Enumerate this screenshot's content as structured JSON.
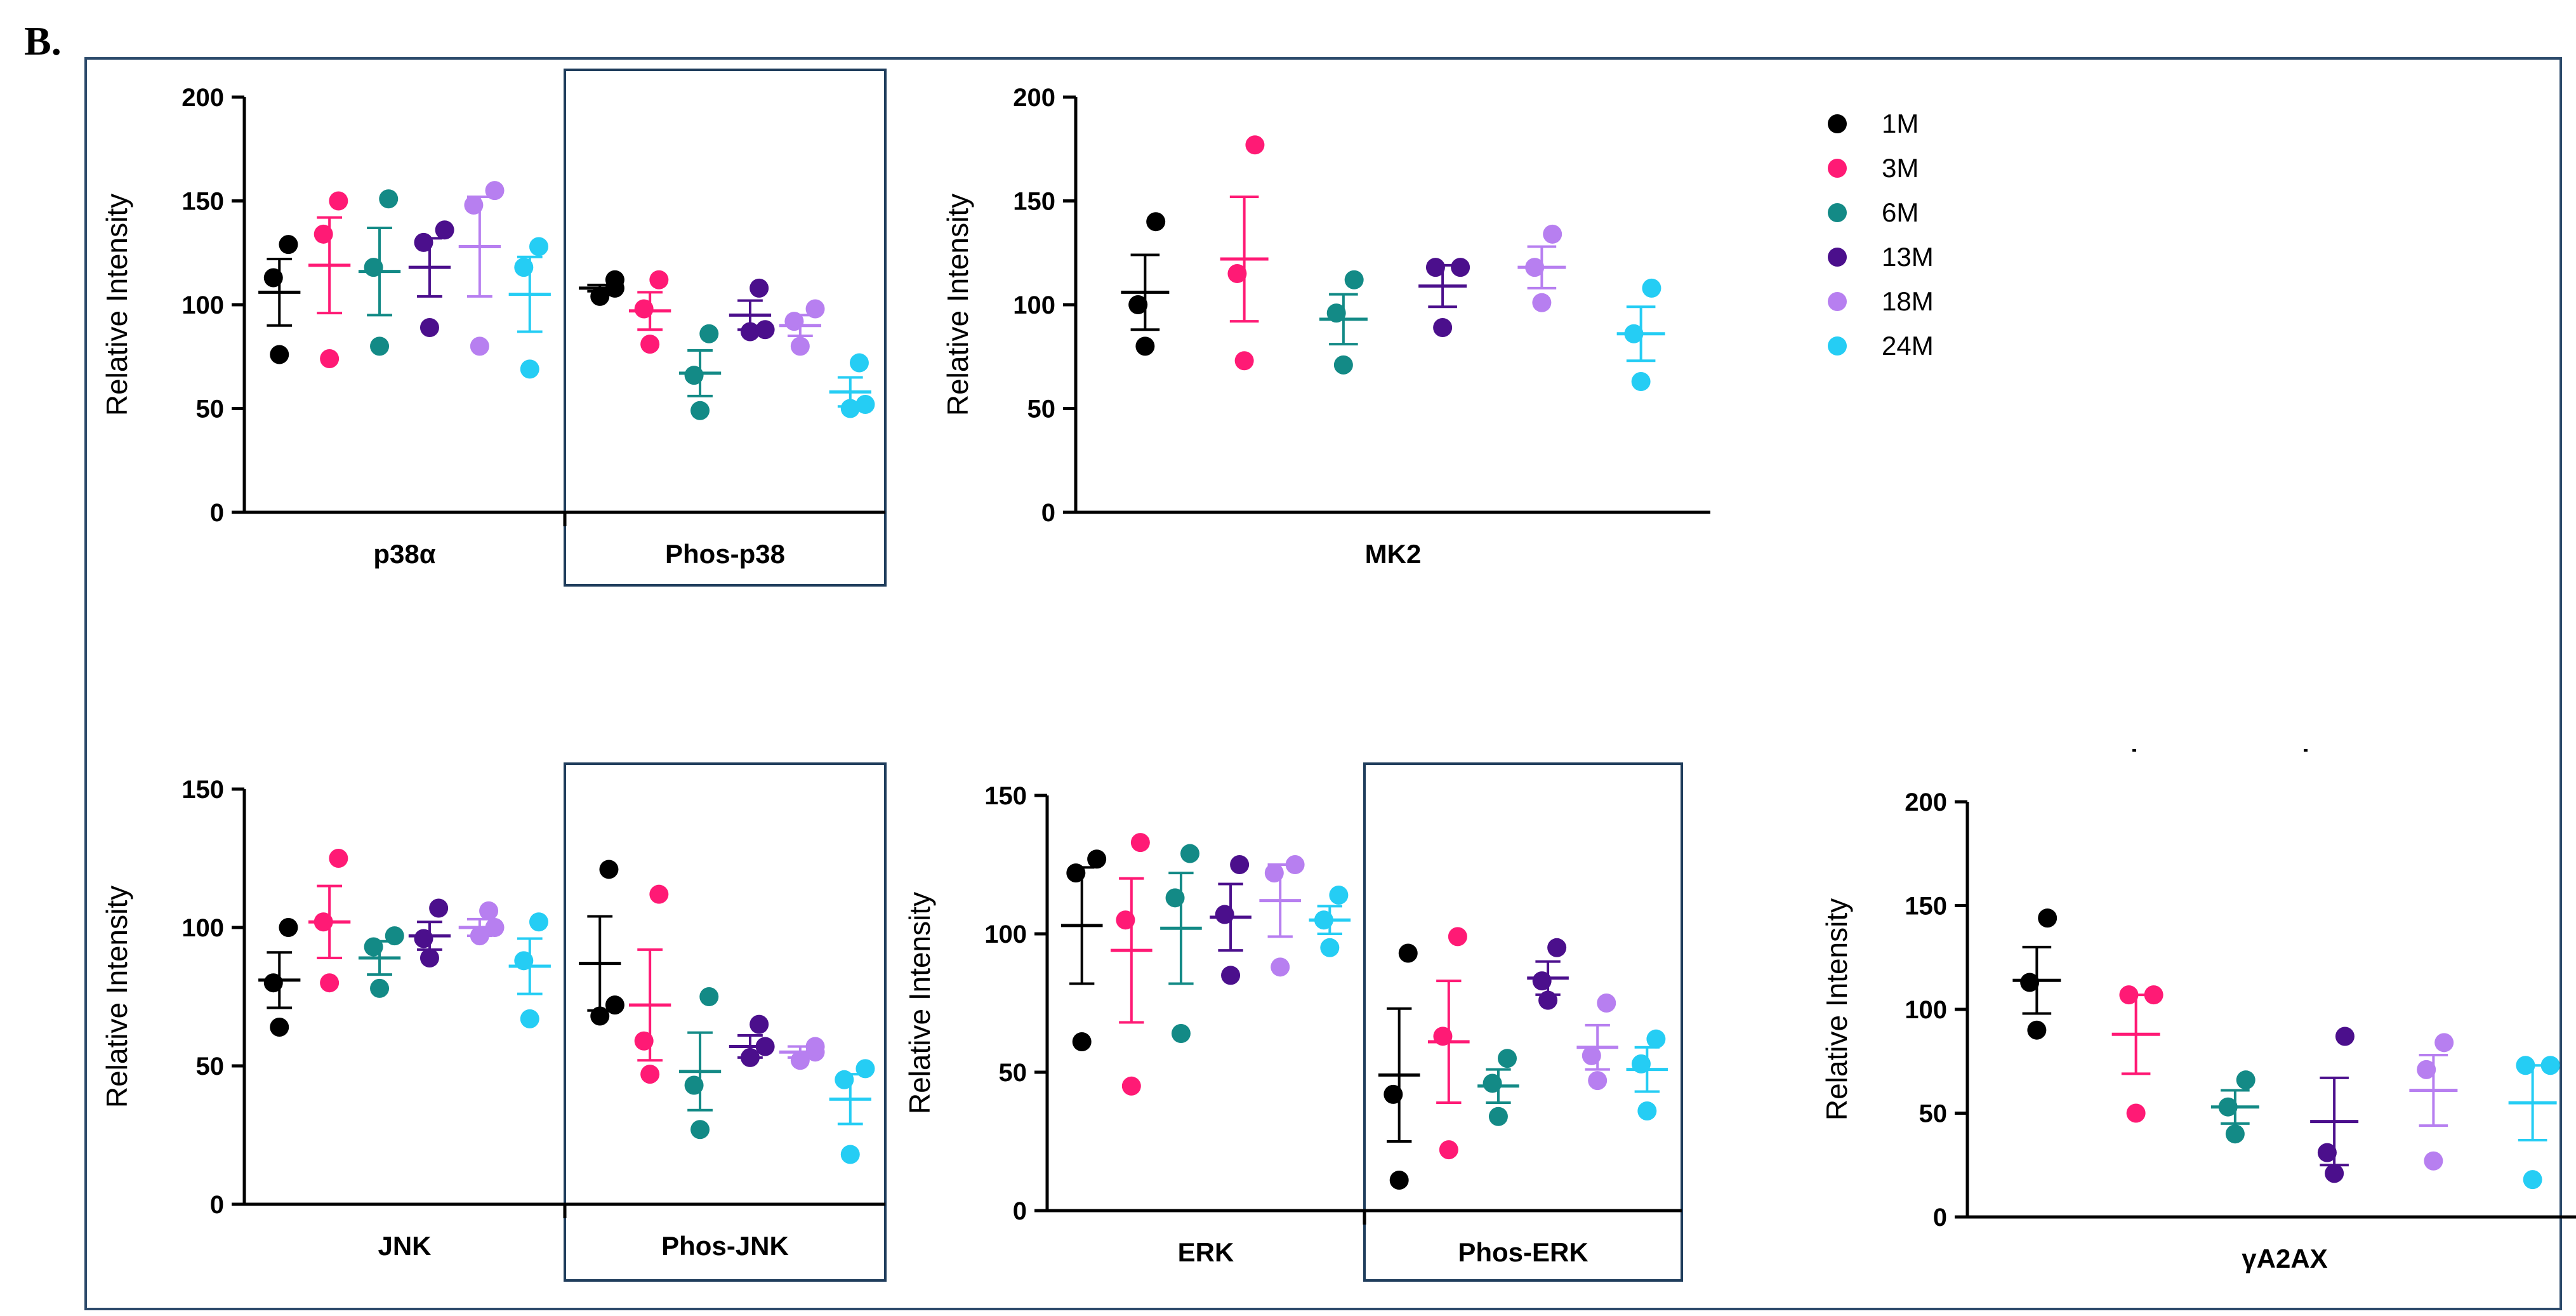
{
  "panel_label": "B.",
  "legend": {
    "entries": [
      {
        "label": "1M",
        "color": "#000000"
      },
      {
        "label": "3M",
        "color": "#ff1a75"
      },
      {
        "label": "6M",
        "color": "#138a86"
      },
      {
        "label": "13M",
        "color": "#4b0f8c"
      },
      {
        "label": "18M",
        "color": "#b77ff0"
      },
      {
        "label": "24M",
        "color": "#25cdf4"
      }
    ]
  },
  "chart_data": [
    {
      "type": "scatter",
      "ylabel": "Relative Intensity",
      "ylim": [
        0,
        200
      ],
      "yticks": [
        "0",
        "50",
        "100",
        "150",
        "200"
      ],
      "groups": [
        {
          "label": "p38α",
          "boxed": false,
          "series": [
            {
              "name": "1M",
              "points": [
                76,
                113,
                129
              ],
              "mean": 106,
              "sem": 16
            },
            {
              "name": "3M",
              "points": [
                74,
                134,
                150
              ],
              "mean": 119,
              "sem": 23
            },
            {
              "name": "6M",
              "points": [
                80,
                118,
                151
              ],
              "mean": 116,
              "sem": 21
            },
            {
              "name": "13M",
              "points": [
                89,
                130,
                136
              ],
              "mean": 118,
              "sem": 14
            },
            {
              "name": "18M",
              "points": [
                80,
                148,
                155
              ],
              "mean": 128,
              "sem": 24
            },
            {
              "name": "24M",
              "points": [
                69,
                118,
                128
              ],
              "mean": 105,
              "sem": 18
            }
          ]
        },
        {
          "label": "Phos-p38",
          "boxed": true,
          "series": [
            {
              "name": "1M",
              "points": [
                104,
                108,
                112
              ],
              "mean": 108,
              "sem": 1.5
            },
            {
              "name": "3M",
              "points": [
                81,
                98,
                112
              ],
              "mean": 97,
              "sem": 9
            },
            {
              "name": "6M",
              "points": [
                49,
                66,
                86
              ],
              "mean": 67,
              "sem": 11
            },
            {
              "name": "13M",
              "points": [
                87,
                88,
                108
              ],
              "mean": 95,
              "sem": 7
            },
            {
              "name": "18M",
              "points": [
                80,
                92,
                98
              ],
              "mean": 90,
              "sem": 5
            },
            {
              "name": "24M",
              "points": [
                50,
                52,
                72
              ],
              "mean": 58,
              "sem": 7
            }
          ]
        }
      ]
    },
    {
      "type": "scatter",
      "ylabel": "Relative Intensity",
      "ylim": [
        0,
        200
      ],
      "yticks": [
        "0",
        "50",
        "100",
        "150",
        "200"
      ],
      "groups": [
        {
          "label": "MK2",
          "boxed": false,
          "series": [
            {
              "name": "1M",
              "points": [
                80,
                100,
                140
              ],
              "mean": 106,
              "sem": 18
            },
            {
              "name": "3M",
              "points": [
                73,
                115,
                177
              ],
              "mean": 122,
              "sem": 30
            },
            {
              "name": "6M",
              "points": [
                71,
                96,
                112
              ],
              "mean": 93,
              "sem": 12
            },
            {
              "name": "13M",
              "points": [
                89,
                118,
                118
              ],
              "mean": 109,
              "sem": 10
            },
            {
              "name": "18M",
              "points": [
                101,
                118,
                134
              ],
              "mean": 118,
              "sem": 10
            },
            {
              "name": "24M",
              "points": [
                63,
                86,
                108
              ],
              "mean": 86,
              "sem": 13
            }
          ]
        }
      ]
    },
    {
      "type": "scatter",
      "ylabel": "Relative Intensity",
      "ylim": [
        0,
        150
      ],
      "yticks": [
        "0",
        "50",
        "100",
        "150"
      ],
      "groups": [
        {
          "label": "JNK",
          "boxed": false,
          "series": [
            {
              "name": "1M",
              "points": [
                64,
                80,
                100
              ],
              "mean": 81,
              "sem": 10
            },
            {
              "name": "3M",
              "points": [
                80,
                102,
                125
              ],
              "mean": 102,
              "sem": 13
            },
            {
              "name": "6M",
              "points": [
                78,
                93,
                97
              ],
              "mean": 89,
              "sem": 6
            },
            {
              "name": "13M",
              "points": [
                89,
                96,
                107
              ],
              "mean": 97,
              "sem": 5
            },
            {
              "name": "18M",
              "points": [
                97,
                100,
                106
              ],
              "mean": 100,
              "sem": 3
            },
            {
              "name": "24M",
              "points": [
                67,
                88,
                102
              ],
              "mean": 86,
              "sem": 10
            }
          ]
        },
        {
          "label": "Phos-JNK",
          "boxed": true,
          "series": [
            {
              "name": "1M",
              "points": [
                68,
                72,
                121
              ],
              "mean": 87,
              "sem": 17
            },
            {
              "name": "3M",
              "points": [
                47,
                59,
                112
              ],
              "mean": 72,
              "sem": 20
            },
            {
              "name": "6M",
              "points": [
                27,
                43,
                75
              ],
              "mean": 48,
              "sem": 14
            },
            {
              "name": "13M",
              "points": [
                53,
                57,
                65
              ],
              "mean": 57,
              "sem": 4
            },
            {
              "name": "18M",
              "points": [
                52,
                55,
                57
              ],
              "mean": 55,
              "sem": 2
            },
            {
              "name": "24M",
              "points": [
                18,
                45,
                49
              ],
              "mean": 38,
              "sem": 9
            }
          ]
        }
      ]
    },
    {
      "type": "scatter",
      "ylabel": "Relative Intensity",
      "ylim": [
        0,
        150
      ],
      "yticks": [
        "0",
        "50",
        "100",
        "150"
      ],
      "groups": [
        {
          "label": "ERK",
          "boxed": false,
          "series": [
            {
              "name": "1M",
              "points": [
                61,
                122,
                127
              ],
              "mean": 103,
              "sem": 21
            },
            {
              "name": "3M",
              "points": [
                45,
                105,
                133
              ],
              "mean": 94,
              "sem": 26
            },
            {
              "name": "6M",
              "points": [
                64,
                113,
                129
              ],
              "mean": 102,
              "sem": 20
            },
            {
              "name": "13M",
              "points": [
                85,
                107,
                125
              ],
              "mean": 106,
              "sem": 12
            },
            {
              "name": "18M",
              "points": [
                88,
                122,
                125
              ],
              "mean": 112,
              "sem": 13
            },
            {
              "name": "24M",
              "points": [
                95,
                105,
                114
              ],
              "mean": 105,
              "sem": 5
            }
          ]
        },
        {
          "label": "Phos-ERK",
          "boxed": true,
          "series": [
            {
              "name": "1M",
              "points": [
                11,
                42,
                93
              ],
              "mean": 49,
              "sem": 24
            },
            {
              "name": "3M",
              "points": [
                22,
                63,
                99
              ],
              "mean": 61,
              "sem": 22
            },
            {
              "name": "6M",
              "points": [
                34,
                46,
                55
              ],
              "mean": 45,
              "sem": 6
            },
            {
              "name": "13M",
              "points": [
                76,
                83,
                95
              ],
              "mean": 84,
              "sem": 6
            },
            {
              "name": "18M",
              "points": [
                47,
                56,
                75
              ],
              "mean": 59,
              "sem": 8
            },
            {
              "name": "24M",
              "points": [
                36,
                53,
                62
              ],
              "mean": 51,
              "sem": 8
            }
          ]
        }
      ]
    },
    {
      "type": "scatter",
      "ylabel": "Relative Intensity",
      "ylim": [
        0,
        200
      ],
      "yticks": [
        "0",
        "50",
        "100",
        "150",
        "200"
      ],
      "groups": [
        {
          "label": "γA2AX",
          "boxed": false,
          "series": [
            {
              "name": "1M",
              "points": [
                90,
                113,
                144
              ],
              "mean": 114,
              "sem": 16
            },
            {
              "name": "3M",
              "points": [
                50,
                107,
                107
              ],
              "mean": 88,
              "sem": 19
            },
            {
              "name": "6M",
              "points": [
                40,
                53,
                66
              ],
              "mean": 53,
              "sem": 8
            },
            {
              "name": "13M",
              "points": [
                21,
                31,
                87
              ],
              "mean": 46,
              "sem": 21
            },
            {
              "name": "18M",
              "points": [
                27,
                71,
                84
              ],
              "mean": 61,
              "sem": 17
            },
            {
              "name": "24M",
              "points": [
                18,
                73,
                73
              ],
              "mean": 55,
              "sem": 18
            }
          ]
        }
      ]
    }
  ]
}
